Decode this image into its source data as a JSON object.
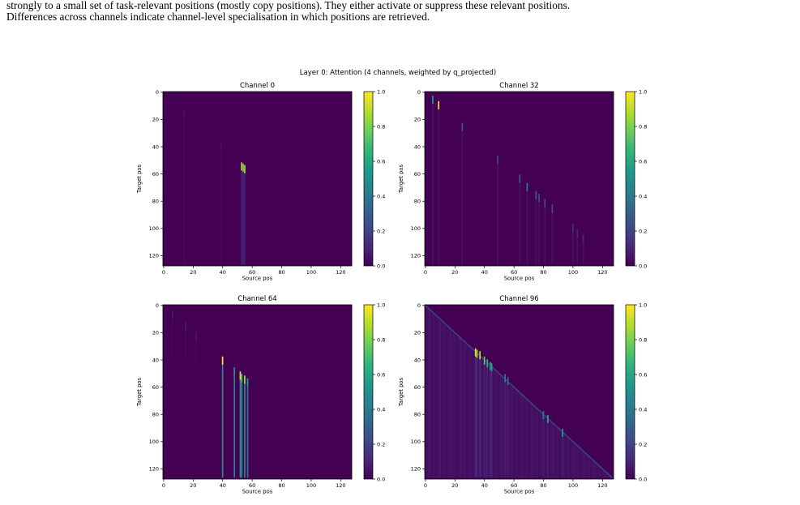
{
  "caption": {
    "line1": "strongly to a small set of task-relevant positions (mostly copy positions).  They either activate or suppress these relevant positions.",
    "line2": "Differences across channels indicate channel-level specialisation in which positions are retrieved."
  },
  "figure": {
    "suptitle": "Layer 0: Attention (4 channels, weighted by q_projected)"
  },
  "colors": {
    "cmap": [
      "#440154",
      "#482878",
      "#3e4989",
      "#31688e",
      "#26828e",
      "#1f9e89",
      "#35b779",
      "#6ece58",
      "#b5de2b",
      "#fde725"
    ]
  },
  "chart_data": [
    {
      "type": "heatmap",
      "title": "Channel 0",
      "xlabel": "Source pos",
      "ylabel": "Target pos",
      "xlim": [
        0,
        127
      ],
      "ylim": [
        127,
        0
      ],
      "xticks": [
        0,
        20,
        40,
        60,
        80,
        100,
        120
      ],
      "yticks": [
        0,
        20,
        40,
        60,
        80,
        100,
        120
      ],
      "colorbar": {
        "ticks": [
          0.0,
          0.2,
          0.4,
          0.6,
          0.8,
          1.0
        ],
        "labels": [
          "0.0",
          "0.2",
          "0.4",
          "0.6",
          "0.8",
          "1.0"
        ],
        "range": [
          0,
          1
        ]
      },
      "background": 0.0,
      "columns": [
        {
          "x": 14,
          "y": 13,
          "len": 114,
          "v": 0.06,
          "tail": 0.03
        },
        {
          "x": 39,
          "y": 37,
          "len": 90,
          "v": 0.04,
          "tail": 0.02
        },
        {
          "x": 53,
          "y": 52,
          "len": 75,
          "v": 0.95,
          "tail": 0.09
        },
        {
          "x": 54,
          "y": 53,
          "len": 74,
          "v": 0.75,
          "tail": 0.09
        },
        {
          "x": 55,
          "y": 54,
          "len": 73,
          "v": 0.9,
          "tail": 0.09
        }
      ],
      "diagonal": 0
    },
    {
      "type": "heatmap",
      "title": "Channel 32",
      "xlabel": "Source pos",
      "ylabel": "Target pos",
      "xlim": [
        0,
        127
      ],
      "ylim": [
        127,
        0
      ],
      "xticks": [
        0,
        20,
        40,
        60,
        80,
        100,
        120
      ],
      "yticks": [
        0,
        20,
        40,
        60,
        80,
        100,
        120
      ],
      "colorbar": {
        "ticks": [
          0.0,
          0.2,
          0.4,
          0.6,
          0.8,
          1.0
        ],
        "labels": [
          "0.0",
          "0.2",
          "0.4",
          "0.6",
          "0.8",
          "1.0"
        ],
        "range": [
          0,
          1
        ]
      },
      "background": 0.0,
      "columns": [
        {
          "x": 5,
          "y": 3,
          "len": 124,
          "v": 0.55,
          "tail": 0.05
        },
        {
          "x": 9,
          "y": 7,
          "len": 120,
          "v": 1.0,
          "tail": 0.05
        },
        {
          "x": 25,
          "y": 23,
          "len": 104,
          "v": 0.3,
          "tail": 0.05
        },
        {
          "x": 49,
          "y": 47,
          "len": 80,
          "v": 0.25,
          "tail": 0.05
        },
        {
          "x": 64,
          "y": 61,
          "len": 66,
          "v": 0.3,
          "tail": 0.05
        },
        {
          "x": 69,
          "y": 67,
          "len": 60,
          "v": 0.45,
          "tail": 0.05
        },
        {
          "x": 75,
          "y": 73,
          "len": 54,
          "v": 0.3,
          "tail": 0.05
        },
        {
          "x": 77,
          "y": 75,
          "len": 52,
          "v": 0.25,
          "tail": 0.05
        },
        {
          "x": 81,
          "y": 79,
          "len": 48,
          "v": 0.25,
          "tail": 0.05
        },
        {
          "x": 86,
          "y": 83,
          "len": 44,
          "v": 0.25,
          "tail": 0.05
        },
        {
          "x": 100,
          "y": 97,
          "len": 30,
          "v": 0.15,
          "tail": 0.05
        },
        {
          "x": 103,
          "y": 101,
          "len": 26,
          "v": 0.12,
          "tail": 0.05
        },
        {
          "x": 107,
          "y": 105,
          "len": 22,
          "v": 0.12,
          "tail": 0.05
        }
      ],
      "diagonal": 0
    },
    {
      "type": "heatmap",
      "title": "Channel 64",
      "xlabel": "Source pos",
      "ylabel": "Target pos",
      "xlim": [
        0,
        127
      ],
      "ylim": [
        127,
        0
      ],
      "xticks": [
        0,
        20,
        40,
        60,
        80,
        100,
        120
      ],
      "yticks": [
        0,
        20,
        40,
        60,
        80,
        100,
        120
      ],
      "colorbar": {
        "ticks": [
          0.0,
          0.2,
          0.4,
          0.6,
          0.8,
          1.0
        ],
        "labels": [
          "0.0",
          "0.2",
          "0.4",
          "0.6",
          "0.8",
          "1.0"
        ],
        "range": [
          0,
          1
        ]
      },
      "background": 0.0,
      "columns": [
        {
          "x": 6,
          "y": 4,
          "len": 34,
          "v": 0.08,
          "tail": 0.02
        },
        {
          "x": 15,
          "y": 13,
          "len": 28,
          "v": 0.08,
          "tail": 0.02
        },
        {
          "x": 22,
          "y": 20,
          "len": 22,
          "v": 0.06,
          "tail": 0.02
        },
        {
          "x": 40,
          "y": 38,
          "len": 89,
          "v": 1.0,
          "tail": 0.5
        },
        {
          "x": 48,
          "y": 46,
          "len": 81,
          "v": 0.5,
          "tail": 0.45
        },
        {
          "x": 52,
          "y": 49,
          "len": 78,
          "v": 0.95,
          "tail": 0.5
        },
        {
          "x": 53,
          "y": 51,
          "len": 76,
          "v": 0.7,
          "tail": 0.45
        },
        {
          "x": 55,
          "y": 52,
          "len": 75,
          "v": 0.85,
          "tail": 0.5
        },
        {
          "x": 57,
          "y": 54,
          "len": 73,
          "v": 0.55,
          "tail": 0.4
        }
      ],
      "diagonal": 0
    },
    {
      "type": "heatmap",
      "title": "Channel 96",
      "xlabel": "Source pos",
      "ylabel": "Target pos",
      "xlim": [
        0,
        127
      ],
      "ylim": [
        127,
        0
      ],
      "xticks": [
        0,
        20,
        40,
        60,
        80,
        100,
        120
      ],
      "yticks": [
        0,
        20,
        40,
        60,
        80,
        100,
        120
      ],
      "colorbar": {
        "ticks": [
          0.0,
          0.2,
          0.4,
          0.6,
          0.8,
          1.0
        ],
        "labels": [
          "0.0",
          "0.2",
          "0.4",
          "0.6",
          "0.8",
          "1.0"
        ],
        "range": [
          0,
          1
        ]
      },
      "background": 0.0,
      "columns": [
        {
          "x": 34,
          "y": 32,
          "len": 95,
          "v": 0.95,
          "tail": 0.12
        },
        {
          "x": 35,
          "y": 33,
          "len": 94,
          "v": 0.85,
          "tail": 0.12
        },
        {
          "x": 37,
          "y": 34,
          "len": 93,
          "v": 0.9,
          "tail": 0.12
        },
        {
          "x": 40,
          "y": 38,
          "len": 89,
          "v": 0.75,
          "tail": 0.1
        },
        {
          "x": 42,
          "y": 40,
          "len": 87,
          "v": 0.65,
          "tail": 0.1
        },
        {
          "x": 44,
          "y": 42,
          "len": 85,
          "v": 0.6,
          "tail": 0.1
        },
        {
          "x": 45,
          "y": 43,
          "len": 84,
          "v": 0.55,
          "tail": 0.1
        },
        {
          "x": 54,
          "y": 51,
          "len": 76,
          "v": 0.45,
          "tail": 0.08
        },
        {
          "x": 56,
          "y": 53,
          "len": 74,
          "v": 0.35,
          "tail": 0.08
        },
        {
          "x": 80,
          "y": 78,
          "len": 49,
          "v": 0.45,
          "tail": 0.08
        },
        {
          "x": 83,
          "y": 81,
          "len": 46,
          "v": 0.6,
          "tail": 0.08
        },
        {
          "x": 93,
          "y": 91,
          "len": 36,
          "v": 0.55,
          "tail": 0.08
        }
      ],
      "diagonal": 1
    }
  ]
}
